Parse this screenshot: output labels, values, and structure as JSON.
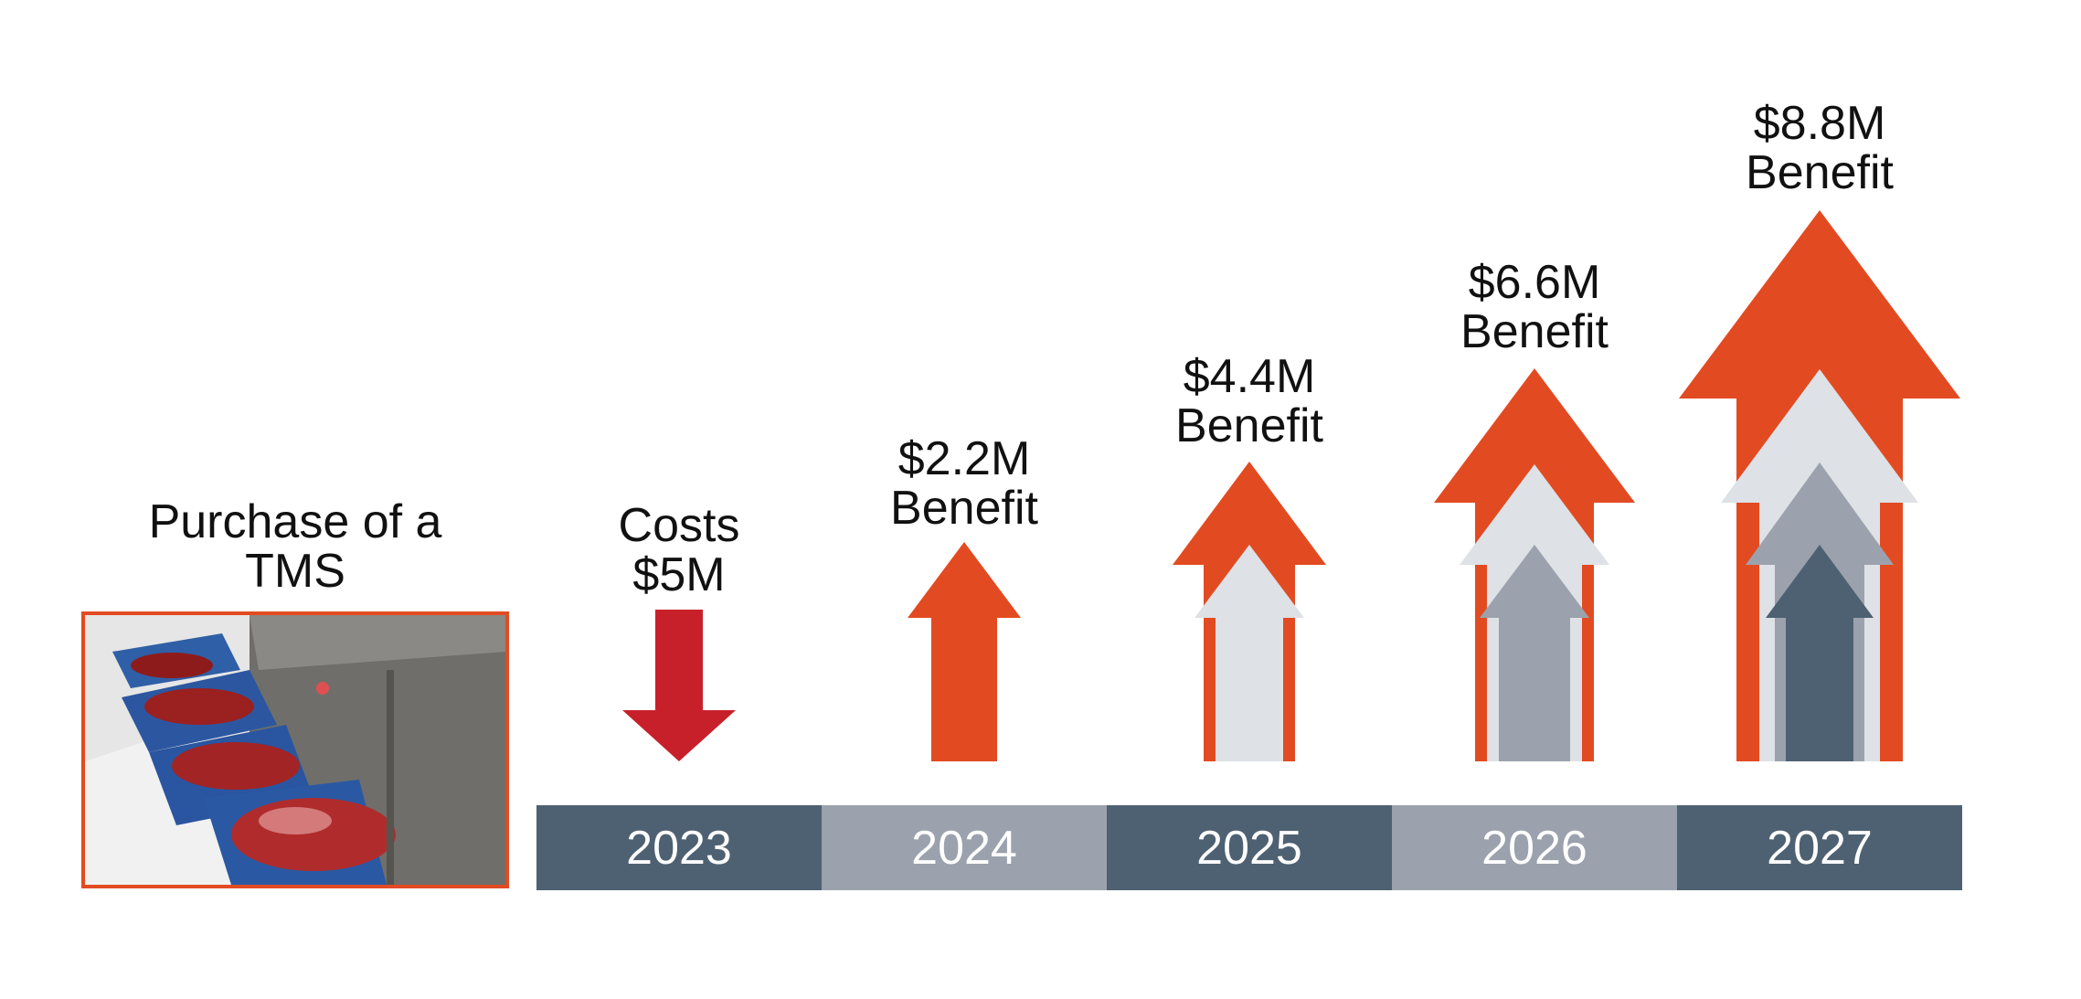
{
  "colors": {
    "orange": "#e24b22",
    "red": "#c8202a",
    "light_gray": "#dee1e5",
    "mid_gray": "#9ba2ad",
    "dark_slate": "#4e6172",
    "year_dark": "#4e6172",
    "year_light": "#9ba2ad"
  },
  "purchase": {
    "line1": "Purchase of a",
    "line2": "TMS",
    "image_icon": "meat-processing-conveyor-photo"
  },
  "columns": [
    {
      "year": "2023",
      "line1": "Costs",
      "line2": "$5M",
      "direction": "down",
      "amount_m": 5
    },
    {
      "year": "2024",
      "line1": "$2.2M",
      "line2": "Benefit",
      "direction": "up",
      "amount_m": 2.2
    },
    {
      "year": "2025",
      "line1": "$4.4M",
      "line2": "Benefit",
      "direction": "up",
      "amount_m": 4.4
    },
    {
      "year": "2026",
      "line1": "$6.6M",
      "line2": "Benefit",
      "direction": "up",
      "amount_m": 6.6
    },
    {
      "year": "2027",
      "line1": "$8.8M",
      "line2": "Benefit",
      "direction": "up",
      "amount_m": 8.8
    }
  ]
}
